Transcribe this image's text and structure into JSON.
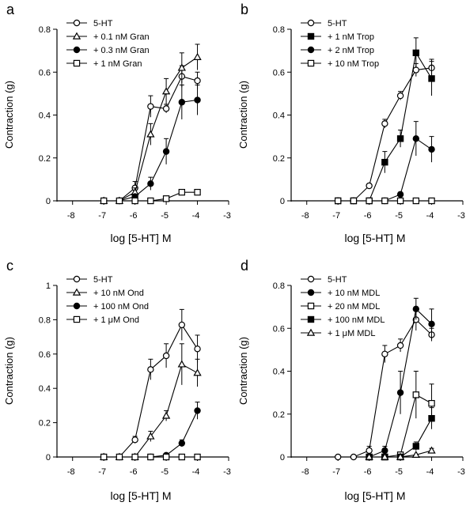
{
  "chart_data": [
    {
      "type": "line",
      "panel_label": "a",
      "xlabel": "log [5-HT] M",
      "ylabel": "Contraction (g)",
      "xlim": [
        -8.5,
        -3
      ],
      "ylim": [
        0,
        0.8
      ],
      "xticks": [
        -8,
        -7,
        -6,
        -5,
        -4,
        -3
      ],
      "yticks": [
        0,
        0.2,
        0.4,
        0.6,
        0.8
      ],
      "ytick_labels": [
        "0",
        "0.2",
        "0.4",
        "0.6",
        "0.8"
      ],
      "legend_position": "top-left",
      "series": [
        {
          "name": "5-HT",
          "marker": "circle-open",
          "x": [
            -7,
            -6.5,
            -6,
            -5.5,
            -5,
            -4.5,
            -4
          ],
          "y": [
            0,
            0,
            0.06,
            0.44,
            0.43,
            0.58,
            0.56
          ],
          "err": [
            0,
            0,
            0.03,
            0.05,
            0.02,
            0.05,
            0.04
          ]
        },
        {
          "name": "+ 0.1 nM Gran",
          "marker": "triangle-open",
          "x": [
            -7,
            -6.5,
            -6,
            -5.5,
            -5,
            -4.5,
            -4
          ],
          "y": [
            0,
            0,
            0.04,
            0.31,
            0.51,
            0.62,
            0.67
          ],
          "err": [
            0,
            0,
            0.02,
            0.05,
            0.06,
            0.07,
            0.06
          ]
        },
        {
          "name": "+ 0.3 nM Gran",
          "marker": "circle-filled",
          "x": [
            -7,
            -6.5,
            -6,
            -5.5,
            -5,
            -4.5,
            -4
          ],
          "y": [
            0,
            0,
            0.02,
            0.08,
            0.23,
            0.46,
            0.47
          ],
          "err": [
            0,
            0,
            0.01,
            0.03,
            0.06,
            0.08,
            0.07
          ]
        },
        {
          "name": "+ 1 nM Gran",
          "marker": "square-open",
          "x": [
            -7,
            -6.5,
            -6,
            -5.5,
            -5,
            -4.5,
            -4
          ],
          "y": [
            0,
            0,
            0,
            0,
            0.01,
            0.04,
            0.04
          ],
          "err": [
            0,
            0,
            0,
            0,
            0,
            0.01,
            0.01
          ]
        }
      ]
    },
    {
      "type": "line",
      "panel_label": "b",
      "xlabel": "log [5-HT] M",
      "ylabel": "Contraction (g)",
      "xlim": [
        -8.5,
        -3
      ],
      "ylim": [
        0,
        0.8
      ],
      "xticks": [
        -8,
        -7,
        -6,
        -5,
        -4,
        -3
      ],
      "yticks": [
        0,
        0.2,
        0.4,
        0.6,
        0.8
      ],
      "ytick_labels": [
        "0",
        "0.2",
        "0.4",
        "0.6",
        "0.8"
      ],
      "legend_position": "top-left",
      "series": [
        {
          "name": "5-HT",
          "marker": "circle-open",
          "x": [
            -7,
            -6.5,
            -6,
            -5.5,
            -5,
            -4.5,
            -4
          ],
          "y": [
            0,
            0,
            0.07,
            0.36,
            0.49,
            0.61,
            0.62
          ],
          "err": [
            0,
            0,
            0.01,
            0.02,
            0.02,
            0.03,
            0.04
          ]
        },
        {
          "name": "+ 1 nM Trop",
          "marker": "square-filled",
          "x": [
            -7,
            -6.5,
            -6,
            -5.5,
            -5,
            -4.5,
            -4
          ],
          "y": [
            0,
            0,
            0,
            0.18,
            0.29,
            0.69,
            0.57
          ],
          "err": [
            0,
            0,
            0,
            0.05,
            0.04,
            0.07,
            0.08
          ]
        },
        {
          "name": "+ 2 nM Trop",
          "marker": "circle-filled",
          "x": [
            -7,
            -6.5,
            -6,
            -5.5,
            -5,
            -4.5,
            -4
          ],
          "y": [
            0,
            0,
            0,
            0,
            0.03,
            0.29,
            0.24
          ],
          "err": [
            0,
            0,
            0,
            0,
            0.01,
            0.08,
            0.06
          ]
        },
        {
          "name": "+ 10 nM Trop",
          "marker": "square-open",
          "x": [
            -7,
            -6.5,
            -6,
            -5.5,
            -5,
            -4.5,
            -4
          ],
          "y": [
            0,
            0,
            0,
            0,
            0,
            0,
            0
          ],
          "err": [
            0,
            0,
            0,
            0,
            0,
            0,
            0
          ]
        }
      ]
    },
    {
      "type": "line",
      "panel_label": "c",
      "xlabel": "log [5-HT] M",
      "ylabel": "Contraction (g)",
      "xlim": [
        -8.5,
        -3
      ],
      "ylim": [
        0,
        1
      ],
      "xticks": [
        -8,
        -7,
        -6,
        -5,
        -4,
        -3
      ],
      "yticks": [
        0,
        0.2,
        0.4,
        0.6,
        0.8,
        1
      ],
      "ytick_labels": [
        "0",
        "0.2",
        "0.4",
        "0.6",
        "0.8",
        "1"
      ],
      "legend_position": "top-left",
      "series": [
        {
          "name": "5-HT",
          "marker": "circle-open",
          "x": [
            -7,
            -6.5,
            -6,
            -5.5,
            -5,
            -4.5,
            -4
          ],
          "y": [
            0,
            0,
            0.1,
            0.51,
            0.59,
            0.77,
            0.63
          ],
          "err": [
            0,
            0,
            0.02,
            0.06,
            0.07,
            0.09,
            0.08
          ]
        },
        {
          "name": "+ 10 nM Ond",
          "marker": "triangle-open",
          "x": [
            -7,
            -6.5,
            -6,
            -5.5,
            -5,
            -4.5,
            -4
          ],
          "y": [
            0,
            0,
            0,
            0.12,
            0.24,
            0.54,
            0.49
          ],
          "err": [
            0,
            0,
            0,
            0.03,
            0.03,
            0.12,
            0.08
          ]
        },
        {
          "name": "+ 100 nM Ond",
          "marker": "circle-filled",
          "x": [
            -5.5,
            -5,
            -4.5,
            -4
          ],
          "y": [
            0,
            0.01,
            0.08,
            0.27
          ],
          "err": [
            0,
            0,
            0.02,
            0.05
          ]
        },
        {
          "name": "+ 1 μM Ond",
          "marker": "square-open",
          "x": [
            -7,
            -6.5,
            -6,
            -5.5,
            -5,
            -4.5,
            -4
          ],
          "y": [
            0,
            0,
            0,
            0,
            0,
            0,
            0
          ],
          "err": [
            0,
            0,
            0,
            0,
            0,
            0,
            0
          ]
        }
      ]
    },
    {
      "type": "line",
      "panel_label": "d",
      "xlabel": "log [5-HT] M",
      "ylabel": "Contraction (g)",
      "xlim": [
        -8.5,
        -3
      ],
      "ylim": [
        0,
        0.8
      ],
      "xticks": [
        -8,
        -7,
        -6,
        -5,
        -4,
        -3
      ],
      "yticks": [
        0,
        0.2,
        0.4,
        0.6,
        0.8
      ],
      "ytick_labels": [
        "0",
        "0.2",
        "0.4",
        "0.6",
        "0.8"
      ],
      "legend_position": "top-left",
      "series": [
        {
          "name": "5-HT",
          "marker": "circle-open",
          "x": [
            -7,
            -6.5,
            -6,
            -5.5,
            -5,
            -4.5,
            -4
          ],
          "y": [
            0,
            0,
            0.03,
            0.48,
            0.52,
            0.64,
            0.57
          ],
          "err": [
            0,
            0,
            0.02,
            0.04,
            0.03,
            0.05,
            0.03
          ]
        },
        {
          "name": "+ 10 nM MDL",
          "marker": "circle-filled",
          "x": [
            -6,
            -5.5,
            -5,
            -4.5,
            -4
          ],
          "y": [
            0,
            0.03,
            0.3,
            0.69,
            0.62
          ],
          "err": [
            0,
            0.02,
            0.1,
            0.05,
            0.07
          ]
        },
        {
          "name": "+ 20 nM MDL",
          "marker": "square-open",
          "x": [
            -6,
            -5.5,
            -5,
            -4.5,
            -4
          ],
          "y": [
            0,
            0,
            0.01,
            0.29,
            0.25
          ],
          "err": [
            0,
            0,
            0,
            0.11,
            0.09
          ]
        },
        {
          "name": "+ 100 nM MDL",
          "marker": "square-filled",
          "x": [
            -6,
            -5.5,
            -5,
            -4.5,
            -4
          ],
          "y": [
            0,
            0,
            0,
            0.05,
            0.18
          ],
          "err": [
            0,
            0,
            0,
            0.02,
            0.05
          ]
        },
        {
          "name": "+ 1 μM MDL",
          "marker": "triangle-open",
          "x": [
            -6,
            -5.5,
            -5,
            -4.5,
            -4
          ],
          "y": [
            0,
            0,
            0,
            0.01,
            0.03
          ],
          "err": [
            0,
            0,
            0,
            0,
            0.01
          ]
        }
      ]
    }
  ]
}
